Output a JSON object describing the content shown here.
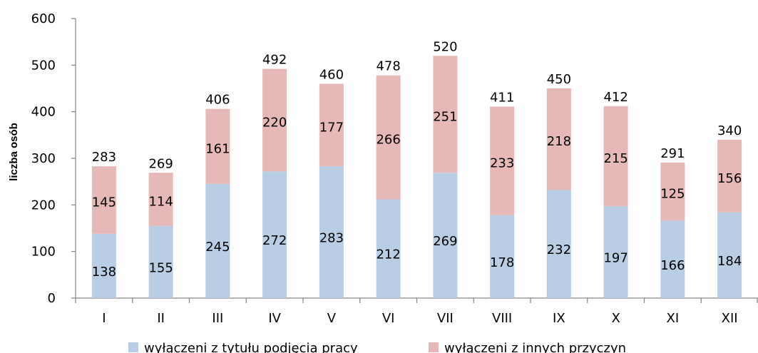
{
  "chart_data": {
    "type": "bar",
    "stacked": true,
    "categories": [
      "I",
      "II",
      "III",
      "IV",
      "V",
      "VI",
      "VII",
      "VIII",
      "IX",
      "X",
      "XI",
      "XII"
    ],
    "series": [
      {
        "name": "wyłączeni z tytułu podjęcia pracy",
        "color": "#b9cde5",
        "values": [
          138,
          155,
          245,
          272,
          283,
          212,
          269,
          178,
          232,
          197,
          166,
          184
        ]
      },
      {
        "name": "wyłączeni z innych przyczyn",
        "color": "#e6b9b8",
        "values": [
          145,
          114,
          161,
          220,
          177,
          266,
          251,
          233,
          218,
          215,
          125,
          156
        ]
      }
    ],
    "totals": [
      283,
      269,
      406,
      492,
      460,
      478,
      520,
      411,
      450,
      412,
      291,
      340
    ],
    "ylabel": "liczba osób",
    "xlabel": "",
    "ylim": [
      0,
      600
    ],
    "yticks": [
      0,
      100,
      200,
      300,
      400,
      500,
      600
    ],
    "grid": false,
    "legend_position": "bottom"
  }
}
